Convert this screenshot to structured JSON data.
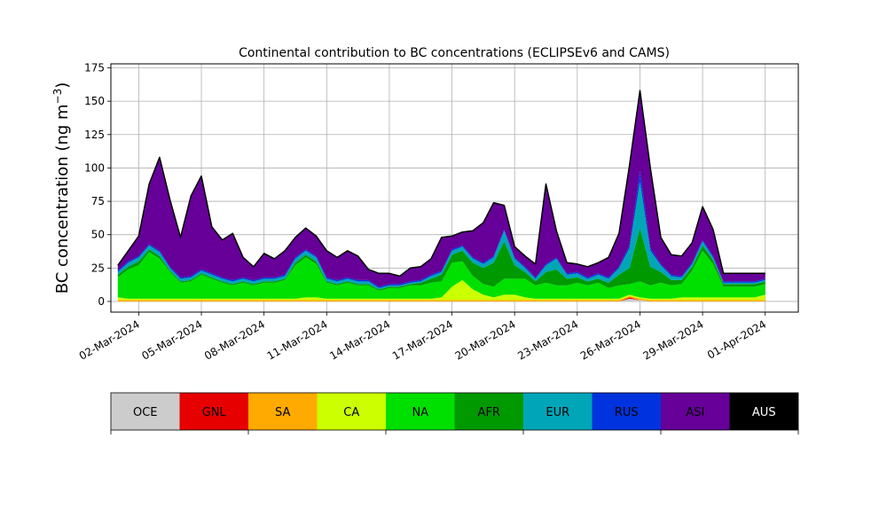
{
  "chart_data": {
    "type": "area",
    "title": "Continental contribution to BC concentrations (ECLIPSEv6 and CAMS)",
    "ylabel": "BC concentration (ng m",
    "ylabel_superscript": "−3",
    "ylabel_suffix": ")",
    "xlabel": "",
    "ylim": [
      -8,
      178
    ],
    "xlim": [
      "2024-02-29T16:00",
      "2024-04-02T14:00"
    ],
    "yticks": [
      0,
      25,
      50,
      75,
      100,
      125,
      150,
      175
    ],
    "xticks": [
      "02-Mar-2024",
      "05-Mar-2024",
      "08-Mar-2024",
      "11-Mar-2024",
      "14-Mar-2024",
      "17-Mar-2024",
      "20-Mar-2024",
      "23-Mar-2024",
      "26-Mar-2024",
      "29-Mar-2024",
      "01-Apr-2024"
    ],
    "grid": true,
    "stacked": true,
    "total_line_color": "#000000",
    "legend": [
      {
        "name": "OCE",
        "color": "#cccccc"
      },
      {
        "name": "GNL",
        "color": "#e60000"
      },
      {
        "name": "SA",
        "color": "#ffaa00"
      },
      {
        "name": "CA",
        "color": "#ccff00"
      },
      {
        "name": "NA",
        "color": "#00e000"
      },
      {
        "name": "AFR",
        "color": "#009900"
      },
      {
        "name": "EUR",
        "color": "#00a6b8"
      },
      {
        "name": "RUS",
        "color": "#0033dd"
      },
      {
        "name": "ASI",
        "color": "#660099"
      },
      {
        "name": "AUS",
        "color": "#000000"
      }
    ],
    "x": [
      "2024-03-01T00:00",
      "2024-03-01T12:00",
      "2024-03-02T00:00",
      "2024-03-02T12:00",
      "2024-03-03T00:00",
      "2024-03-03T12:00",
      "2024-03-04T00:00",
      "2024-03-04T12:00",
      "2024-03-05T00:00",
      "2024-03-05T12:00",
      "2024-03-06T00:00",
      "2024-03-06T12:00",
      "2024-03-07T00:00",
      "2024-03-07T12:00",
      "2024-03-08T00:00",
      "2024-03-08T12:00",
      "2024-03-09T00:00",
      "2024-03-09T12:00",
      "2024-03-10T00:00",
      "2024-03-10T12:00",
      "2024-03-11T00:00",
      "2024-03-11T12:00",
      "2024-03-12T00:00",
      "2024-03-12T12:00",
      "2024-03-13T00:00",
      "2024-03-13T12:00",
      "2024-03-14T00:00",
      "2024-03-14T12:00",
      "2024-03-15T00:00",
      "2024-03-15T12:00",
      "2024-03-16T00:00",
      "2024-03-16T12:00",
      "2024-03-17T00:00",
      "2024-03-17T12:00",
      "2024-03-18T00:00",
      "2024-03-18T12:00",
      "2024-03-19T00:00",
      "2024-03-19T12:00",
      "2024-03-20T00:00",
      "2024-03-20T12:00",
      "2024-03-21T00:00",
      "2024-03-21T12:00",
      "2024-03-22T00:00",
      "2024-03-22T12:00",
      "2024-03-23T00:00",
      "2024-03-23T12:00",
      "2024-03-24T00:00",
      "2024-03-24T12:00",
      "2024-03-25T00:00",
      "2024-03-25T12:00",
      "2024-03-26T00:00",
      "2024-03-26T12:00",
      "2024-03-27T00:00",
      "2024-03-27T12:00",
      "2024-03-28T00:00",
      "2024-03-28T12:00",
      "2024-03-29T00:00",
      "2024-03-29T12:00",
      "2024-03-30T00:00",
      "2024-03-30T12:00",
      "2024-03-31T00:00",
      "2024-03-31T12:00",
      "2024-04-01T00:00"
    ],
    "series": [
      {
        "name": "OCE",
        "values": [
          0,
          0,
          0,
          0,
          0,
          0,
          0,
          0,
          0,
          0,
          0,
          0,
          0,
          0,
          0,
          0,
          0,
          0,
          0,
          0,
          0,
          0,
          0,
          0,
          0,
          0,
          0,
          0,
          0,
          0,
          0,
          0,
          0,
          0,
          0,
          0,
          0,
          0,
          0,
          0,
          0,
          0,
          0,
          0,
          0,
          0,
          0,
          0,
          0,
          2,
          1,
          0,
          0,
          0,
          0,
          0,
          0,
          0,
          0,
          0,
          0,
          0,
          0
        ]
      },
      {
        "name": "GNL",
        "values": [
          0,
          0,
          0,
          0,
          0,
          0,
          0,
          0,
          0,
          0,
          0,
          0,
          0,
          0,
          0,
          0,
          0,
          0,
          0,
          0,
          0,
          0,
          0,
          0,
          0,
          0,
          0,
          0,
          0,
          0,
          0,
          0,
          0,
          0,
          0,
          0,
          0,
          0,
          0,
          0,
          0,
          0,
          0,
          0,
          0,
          0,
          0,
          0,
          0,
          1,
          0,
          0,
          0,
          0,
          0,
          0,
          0,
          0,
          0,
          0,
          0,
          0,
          0
        ]
      },
      {
        "name": "SA",
        "values": [
          1,
          1,
          1,
          1,
          1,
          1,
          1,
          1,
          1,
          1,
          1,
          1,
          1,
          1,
          1,
          1,
          1,
          1,
          1,
          1,
          1,
          1,
          1,
          1,
          1,
          1,
          1,
          1,
          1,
          1,
          1,
          1,
          1,
          1,
          1,
          1,
          1,
          1,
          1,
          1,
          1,
          1,
          1,
          1,
          1,
          1,
          1,
          1,
          1,
          1,
          1,
          1,
          1,
          1,
          1,
          1,
          1,
          1,
          1,
          1,
          1,
          1,
          1
        ]
      },
      {
        "name": "CA",
        "values": [
          2,
          1,
          1,
          1,
          1,
          1,
          1,
          1,
          1,
          1,
          1,
          1,
          1,
          1,
          1,
          1,
          1,
          1,
          2,
          2,
          1,
          1,
          1,
          1,
          1,
          1,
          1,
          1,
          1,
          1,
          1,
          2,
          10,
          15,
          8,
          4,
          2,
          4,
          4,
          2,
          1,
          1,
          1,
          1,
          1,
          1,
          1,
          1,
          1,
          1,
          1,
          1,
          1,
          1,
          2,
          2,
          2,
          2,
          2,
          2,
          2,
          2,
          4
        ]
      },
      {
        "name": "NA",
        "values": [
          15,
          22,
          25,
          35,
          30,
          20,
          12,
          13,
          18,
          15,
          12,
          10,
          12,
          10,
          12,
          12,
          14,
          25,
          30,
          25,
          12,
          10,
          12,
          10,
          10,
          6,
          8,
          8,
          10,
          10,
          12,
          12,
          18,
          14,
          10,
          8,
          8,
          12,
          12,
          14,
          10,
          12,
          10,
          10,
          12,
          10,
          12,
          8,
          10,
          8,
          12,
          10,
          12,
          10,
          10,
          20,
          35,
          25,
          8,
          8,
          8,
          8,
          8
        ]
      },
      {
        "name": "AFR",
        "values": [
          2,
          2,
          3,
          2,
          2,
          1,
          1,
          1,
          1,
          1,
          1,
          1,
          1,
          1,
          1,
          1,
          1,
          2,
          2,
          2,
          1,
          1,
          1,
          1,
          1,
          1,
          1,
          1,
          1,
          2,
          3,
          5,
          6,
          8,
          10,
          12,
          18,
          28,
          10,
          5,
          3,
          8,
          12,
          5,
          4,
          3,
          3,
          4,
          8,
          12,
          40,
          14,
          8,
          4,
          3,
          3,
          4,
          3,
          2,
          2,
          2,
          2,
          2
        ]
      },
      {
        "name": "EUR",
        "values": [
          2,
          3,
          3,
          3,
          3,
          2,
          2,
          2,
          2,
          2,
          2,
          2,
          2,
          2,
          2,
          2,
          2,
          3,
          3,
          3,
          2,
          2,
          2,
          2,
          2,
          1,
          1,
          1,
          1,
          1,
          2,
          2,
          3,
          3,
          3,
          3,
          4,
          8,
          5,
          3,
          2,
          5,
          8,
          3,
          3,
          2,
          3,
          3,
          5,
          15,
          35,
          12,
          5,
          3,
          2,
          2,
          3,
          2,
          1,
          1,
          1,
          1,
          1
        ]
      },
      {
        "name": "RUS",
        "values": [
          1,
          1,
          1,
          1,
          1,
          1,
          1,
          1,
          1,
          1,
          1,
          1,
          1,
          1,
          1,
          1,
          1,
          1,
          1,
          1,
          1,
          1,
          1,
          1,
          1,
          1,
          1,
          1,
          1,
          1,
          1,
          1,
          1,
          1,
          1,
          1,
          1,
          1,
          1,
          1,
          1,
          1,
          1,
          1,
          1,
          1,
          1,
          1,
          1,
          2,
          8,
          2,
          1,
          1,
          1,
          1,
          1,
          1,
          1,
          1,
          1,
          1,
          1
        ]
      },
      {
        "name": "ASI",
        "values": [
          4,
          8,
          15,
          45,
          70,
          50,
          30,
          60,
          70,
          35,
          28,
          35,
          15,
          10,
          18,
          14,
          18,
          15,
          16,
          15,
          20,
          17,
          20,
          18,
          8,
          10,
          8,
          6,
          10,
          10,
          12,
          25,
          10,
          10,
          20,
          30,
          40,
          18,
          8,
          8,
          10,
          60,
          20,
          8,
          6,
          8,
          8,
          15,
          25,
          60,
          60,
          60,
          20,
          15,
          15,
          15,
          25,
          20,
          6,
          6,
          6,
          6,
          4
        ]
      },
      {
        "name": "AUS",
        "values": [
          0,
          0,
          0,
          0,
          0,
          0,
          0,
          0,
          0,
          0,
          0,
          0,
          0,
          0,
          0,
          0,
          0,
          0,
          0,
          0,
          0,
          0,
          0,
          0,
          0,
          0,
          0,
          0,
          0,
          0,
          0,
          0,
          0,
          0,
          0,
          0,
          0,
          0,
          0,
          0,
          0,
          0,
          0,
          0,
          0,
          0,
          0,
          0,
          0,
          0,
          0,
          0,
          0,
          0,
          0,
          0,
          0,
          0,
          0,
          0,
          0,
          0,
          0
        ]
      }
    ]
  }
}
